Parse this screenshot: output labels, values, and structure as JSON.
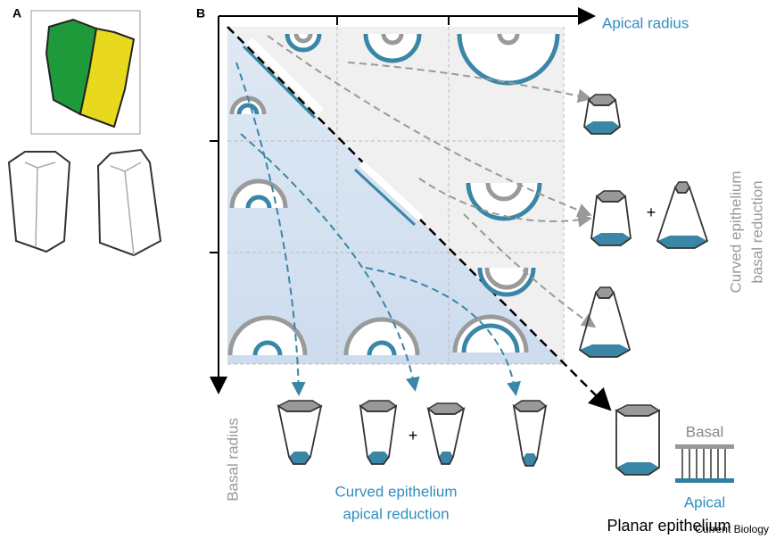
{
  "panel_a": {
    "label": "A"
  },
  "panel_b": {
    "label": "B",
    "x_axis": "Apical radius",
    "y_axis": "Basal radius",
    "basal_reduction": [
      "Curved epithelium",
      "basal reduction"
    ],
    "plus": [
      "+",
      "+"
    ],
    "apical_reduction": [
      "Curved epithelium",
      "apical reduction"
    ],
    "planar": {
      "basal": "Basal",
      "apical": "Apical",
      "title": "Planar epithelium"
    }
  },
  "footer": {
    "credit": "Current Biology"
  }
}
